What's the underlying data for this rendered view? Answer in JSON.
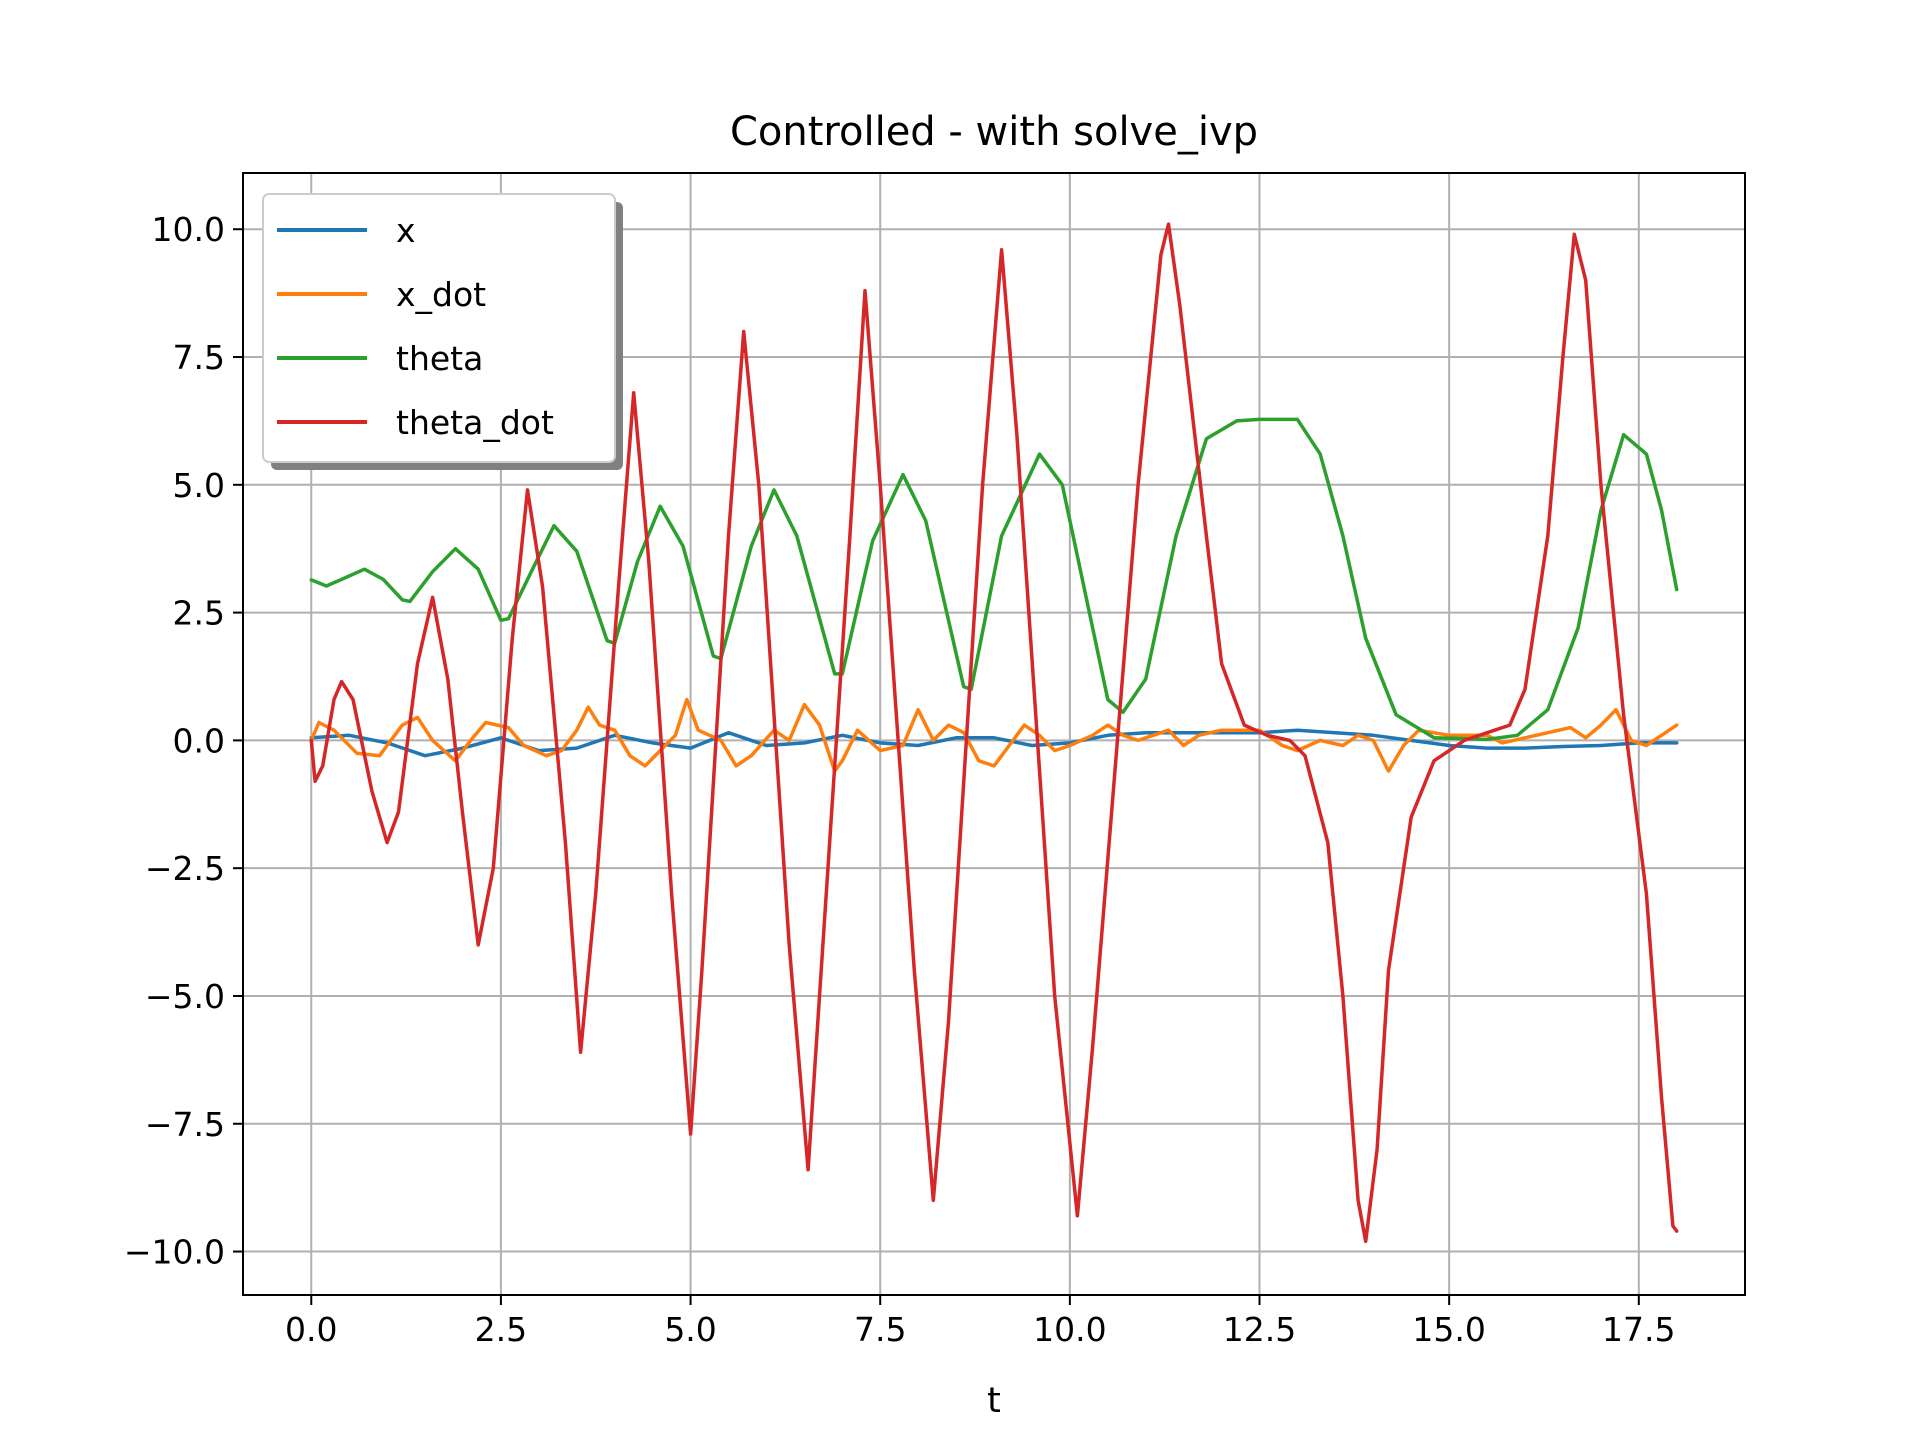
{
  "chart_data": {
    "type": "line",
    "title": "Controlled - with solve_ivp",
    "xlabel": "t",
    "ylabel": "",
    "xlim": [
      -0.9,
      18.9
    ],
    "ylim": [
      -10.85,
      11.1
    ],
    "xticks": [
      0,
      2.5,
      5,
      7.5,
      10,
      12.5,
      15,
      17.5
    ],
    "xtick_labels": [
      "0.0",
      "2.5",
      "5.0",
      "7.5",
      "10.0",
      "12.5",
      "15.0",
      "17.5"
    ],
    "yticks": [
      10,
      7.5,
      5,
      2.5,
      0,
      -2.5,
      -5,
      -7.5,
      -10
    ],
    "ytick_labels": [
      "10.0",
      "7.5",
      "5.0",
      "2.5",
      "0.0",
      "−2.5",
      "−5.0",
      "−7.5",
      "−10.0"
    ],
    "grid": true,
    "legend": "upper-left",
    "series": [
      {
        "name": "x",
        "color": "#1f77b4",
        "points": [
          [
            0,
            0.05
          ],
          [
            0.5,
            0.1
          ],
          [
            1.0,
            -0.05
          ],
          [
            1.5,
            -0.3
          ],
          [
            2.0,
            -0.15
          ],
          [
            2.5,
            0.05
          ],
          [
            3.0,
            -0.2
          ],
          [
            3.5,
            -0.15
          ],
          [
            4.0,
            0.1
          ],
          [
            4.5,
            -0.05
          ],
          [
            5.0,
            -0.15
          ],
          [
            5.5,
            0.15
          ],
          [
            6.0,
            -0.1
          ],
          [
            6.5,
            -0.05
          ],
          [
            7.0,
            0.1
          ],
          [
            7.5,
            -0.05
          ],
          [
            8.0,
            -0.1
          ],
          [
            8.5,
            0.05
          ],
          [
            9.0,
            0.05
          ],
          [
            9.5,
            -0.1
          ],
          [
            10.0,
            -0.05
          ],
          [
            10.5,
            0.1
          ],
          [
            11.0,
            0.15
          ],
          [
            11.5,
            0.15
          ],
          [
            12.0,
            0.15
          ],
          [
            12.5,
            0.15
          ],
          [
            13.0,
            0.2
          ],
          [
            13.5,
            0.15
          ],
          [
            14.0,
            0.1
          ],
          [
            14.5,
            0.0
          ],
          [
            15.0,
            -0.1
          ],
          [
            15.5,
            -0.15
          ],
          [
            16.0,
            -0.15
          ],
          [
            16.5,
            -0.12
          ],
          [
            17.0,
            -0.1
          ],
          [
            17.5,
            -0.05
          ],
          [
            18.0,
            -0.05
          ]
        ]
      },
      {
        "name": "x_dot",
        "color": "#ff7f0e",
        "points": [
          [
            0,
            0.0
          ],
          [
            0.1,
            0.35
          ],
          [
            0.3,
            0.2
          ],
          [
            0.6,
            -0.25
          ],
          [
            0.9,
            -0.3
          ],
          [
            1.2,
            0.3
          ],
          [
            1.4,
            0.45
          ],
          [
            1.6,
            0.0
          ],
          [
            1.9,
            -0.4
          ],
          [
            2.1,
            0.0
          ],
          [
            2.3,
            0.35
          ],
          [
            2.6,
            0.25
          ],
          [
            2.8,
            -0.1
          ],
          [
            3.1,
            -0.3
          ],
          [
            3.3,
            -0.2
          ],
          [
            3.5,
            0.2
          ],
          [
            3.65,
            0.65
          ],
          [
            3.8,
            0.3
          ],
          [
            4.0,
            0.2
          ],
          [
            4.2,
            -0.3
          ],
          [
            4.4,
            -0.5
          ],
          [
            4.6,
            -0.2
          ],
          [
            4.8,
            0.1
          ],
          [
            4.95,
            0.8
          ],
          [
            5.1,
            0.2
          ],
          [
            5.4,
            0.0
          ],
          [
            5.6,
            -0.5
          ],
          [
            5.8,
            -0.3
          ],
          [
            6.1,
            0.2
          ],
          [
            6.3,
            0.0
          ],
          [
            6.5,
            0.7
          ],
          [
            6.7,
            0.3
          ],
          [
            6.9,
            -0.6
          ],
          [
            7.0,
            -0.4
          ],
          [
            7.2,
            0.2
          ],
          [
            7.5,
            -0.2
          ],
          [
            7.8,
            -0.1
          ],
          [
            8.0,
            0.6
          ],
          [
            8.2,
            0.0
          ],
          [
            8.4,
            0.3
          ],
          [
            8.6,
            0.15
          ],
          [
            8.8,
            -0.4
          ],
          [
            9.0,
            -0.5
          ],
          [
            9.2,
            -0.1
          ],
          [
            9.4,
            0.3
          ],
          [
            9.6,
            0.1
          ],
          [
            9.8,
            -0.2
          ],
          [
            10.0,
            -0.1
          ],
          [
            10.3,
            0.1
          ],
          [
            10.5,
            0.3
          ],
          [
            10.7,
            0.1
          ],
          [
            10.9,
            0.0
          ],
          [
            11.1,
            0.1
          ],
          [
            11.3,
            0.2
          ],
          [
            11.5,
            -0.1
          ],
          [
            11.7,
            0.1
          ],
          [
            12.0,
            0.2
          ],
          [
            12.5,
            0.2
          ],
          [
            12.8,
            -0.1
          ],
          [
            13.0,
            -0.2
          ],
          [
            13.3,
            0.0
          ],
          [
            13.6,
            -0.1
          ],
          [
            13.8,
            0.1
          ],
          [
            14.0,
            0.0
          ],
          [
            14.2,
            -0.6
          ],
          [
            14.4,
            -0.1
          ],
          [
            14.6,
            0.2
          ],
          [
            15.0,
            0.1
          ],
          [
            15.5,
            0.1
          ],
          [
            15.7,
            -0.05
          ],
          [
            16.0,
            0.05
          ],
          [
            16.3,
            0.15
          ],
          [
            16.6,
            0.25
          ],
          [
            16.8,
            0.05
          ],
          [
            17.0,
            0.3
          ],
          [
            17.2,
            0.6
          ],
          [
            17.4,
            0.0
          ],
          [
            17.6,
            -0.1
          ],
          [
            17.8,
            0.1
          ],
          [
            18.0,
            0.3
          ]
        ]
      },
      {
        "name": "theta",
        "color": "#2ca02c",
        "points": [
          [
            0,
            3.14
          ],
          [
            0.2,
            3.02
          ],
          [
            0.4,
            3.15
          ],
          [
            0.7,
            3.35
          ],
          [
            0.95,
            3.15
          ],
          [
            1.2,
            2.75
          ],
          [
            1.3,
            2.72
          ],
          [
            1.6,
            3.3
          ],
          [
            1.9,
            3.75
          ],
          [
            2.2,
            3.35
          ],
          [
            2.5,
            2.35
          ],
          [
            2.6,
            2.38
          ],
          [
            2.9,
            3.3
          ],
          [
            3.2,
            4.2
          ],
          [
            3.5,
            3.7
          ],
          [
            3.9,
            1.95
          ],
          [
            4.0,
            1.9
          ],
          [
            4.3,
            3.5
          ],
          [
            4.6,
            4.58
          ],
          [
            4.9,
            3.8
          ],
          [
            5.3,
            1.65
          ],
          [
            5.4,
            1.6
          ],
          [
            5.8,
            3.8
          ],
          [
            6.1,
            4.9
          ],
          [
            6.4,
            4.0
          ],
          [
            6.9,
            1.3
          ],
          [
            7.0,
            1.3
          ],
          [
            7.4,
            3.9
          ],
          [
            7.8,
            5.2
          ],
          [
            8.1,
            4.3
          ],
          [
            8.6,
            1.05
          ],
          [
            8.7,
            1.0
          ],
          [
            9.1,
            4.0
          ],
          [
            9.6,
            5.6
          ],
          [
            9.9,
            5.0
          ],
          [
            10.5,
            0.8
          ],
          [
            10.7,
            0.55
          ],
          [
            11.0,
            1.2
          ],
          [
            11.4,
            4.0
          ],
          [
            11.8,
            5.9
          ],
          [
            12.2,
            6.25
          ],
          [
            12.5,
            6.28
          ],
          [
            13.0,
            6.28
          ],
          [
            13.3,
            5.6
          ],
          [
            13.6,
            4.0
          ],
          [
            13.9,
            2.0
          ],
          [
            14.3,
            0.5
          ],
          [
            14.8,
            0.05
          ],
          [
            15.5,
            0.02
          ],
          [
            15.9,
            0.1
          ],
          [
            16.3,
            0.6
          ],
          [
            16.7,
            2.2
          ],
          [
            17.0,
            4.5
          ],
          [
            17.3,
            5.98
          ],
          [
            17.6,
            5.6
          ],
          [
            17.8,
            4.5
          ],
          [
            18.0,
            2.95
          ]
        ]
      },
      {
        "name": "theta_dot",
        "color": "#d62728",
        "points": [
          [
            0,
            0.0
          ],
          [
            0.05,
            -0.8
          ],
          [
            0.15,
            -0.5
          ],
          [
            0.3,
            0.8
          ],
          [
            0.4,
            1.15
          ],
          [
            0.55,
            0.8
          ],
          [
            0.8,
            -1.0
          ],
          [
            1.0,
            -2.0
          ],
          [
            1.15,
            -1.4
          ],
          [
            1.4,
            1.5
          ],
          [
            1.6,
            2.8
          ],
          [
            1.8,
            1.2
          ],
          [
            2.0,
            -1.5
          ],
          [
            2.2,
            -4.0
          ],
          [
            2.4,
            -2.5
          ],
          [
            2.65,
            2.0
          ],
          [
            2.85,
            4.9
          ],
          [
            3.05,
            3.0
          ],
          [
            3.35,
            -2.0
          ],
          [
            3.55,
            -6.1
          ],
          [
            3.75,
            -3.0
          ],
          [
            4.05,
            3.0
          ],
          [
            4.25,
            6.8
          ],
          [
            4.45,
            3.5
          ],
          [
            4.75,
            -3.0
          ],
          [
            5.0,
            -7.7
          ],
          [
            5.15,
            -4.5
          ],
          [
            5.5,
            4.0
          ],
          [
            5.7,
            8.0
          ],
          [
            5.9,
            5.0
          ],
          [
            6.3,
            -4.0
          ],
          [
            6.55,
            -8.4
          ],
          [
            6.7,
            -5.0
          ],
          [
            7.1,
            4.0
          ],
          [
            7.3,
            8.8
          ],
          [
            7.5,
            5.0
          ],
          [
            7.95,
            -4.5
          ],
          [
            8.2,
            -9.0
          ],
          [
            8.4,
            -5.5
          ],
          [
            8.85,
            5.0
          ],
          [
            9.1,
            9.6
          ],
          [
            9.3,
            6.0
          ],
          [
            9.8,
            -5.0
          ],
          [
            10.1,
            -9.3
          ],
          [
            10.3,
            -6.0
          ],
          [
            10.9,
            5.0
          ],
          [
            11.2,
            9.5
          ],
          [
            11.3,
            10.1
          ],
          [
            11.45,
            8.5
          ],
          [
            11.8,
            4.0
          ],
          [
            12.0,
            1.5
          ],
          [
            12.3,
            0.3
          ],
          [
            12.6,
            0.1
          ],
          [
            12.9,
            0.0
          ],
          [
            13.1,
            -0.3
          ],
          [
            13.4,
            -2.0
          ],
          [
            13.6,
            -5.0
          ],
          [
            13.8,
            -9.0
          ],
          [
            13.9,
            -9.8
          ],
          [
            14.05,
            -8.0
          ],
          [
            14.2,
            -4.5
          ],
          [
            14.5,
            -1.5
          ],
          [
            14.8,
            -0.4
          ],
          [
            15.2,
            0.0
          ],
          [
            15.5,
            0.15
          ],
          [
            15.8,
            0.3
          ],
          [
            16.0,
            1.0
          ],
          [
            16.3,
            4.0
          ],
          [
            16.5,
            7.5
          ],
          [
            16.65,
            9.9
          ],
          [
            16.8,
            9.0
          ],
          [
            17.0,
            5.0
          ],
          [
            17.3,
            0.5
          ],
          [
            17.6,
            -3.0
          ],
          [
            17.8,
            -7.0
          ],
          [
            17.95,
            -9.5
          ],
          [
            18.0,
            -9.6
          ]
        ]
      }
    ]
  }
}
